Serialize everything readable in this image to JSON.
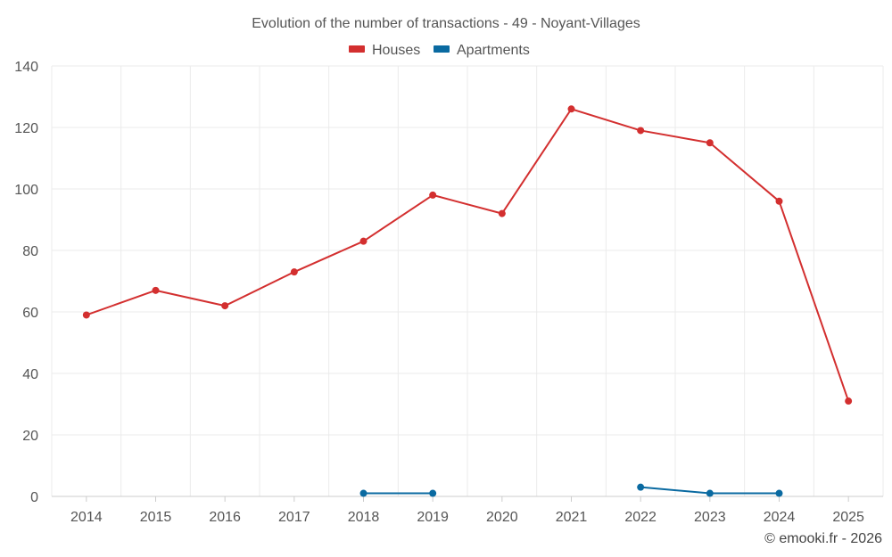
{
  "chart_data": {
    "type": "line",
    "title": "Evolution of the number of transactions - 49 - Noyant-Villages",
    "x": [
      2014,
      2015,
      2016,
      2017,
      2018,
      2019,
      2020,
      2021,
      2022,
      2023,
      2024,
      2025
    ],
    "x_labels": [
      "2014",
      "2015",
      "2016",
      "2017",
      "2018",
      "2019",
      "2020",
      "2021",
      "2022",
      "2023",
      "2024",
      "2025"
    ],
    "ylim": [
      0,
      140
    ],
    "y_ticks": [
      0,
      20,
      40,
      60,
      80,
      100,
      120,
      140
    ],
    "y_tick_labels": [
      "0",
      "20",
      "40",
      "60",
      "80",
      "100",
      "120",
      "140"
    ],
    "grid": true,
    "legend_position": "top-center",
    "series": [
      {
        "name": "Houses",
        "color": "#d32f2f",
        "values": [
          59,
          67,
          62,
          73,
          83,
          98,
          92,
          126,
          119,
          115,
          96,
          31
        ]
      },
      {
        "name": "Apartments",
        "color": "#0a6aa1",
        "values": [
          null,
          null,
          null,
          null,
          1,
          1,
          null,
          null,
          3,
          1,
          1,
          null
        ]
      }
    ],
    "credit": "© emooki.fr - 2026"
  }
}
